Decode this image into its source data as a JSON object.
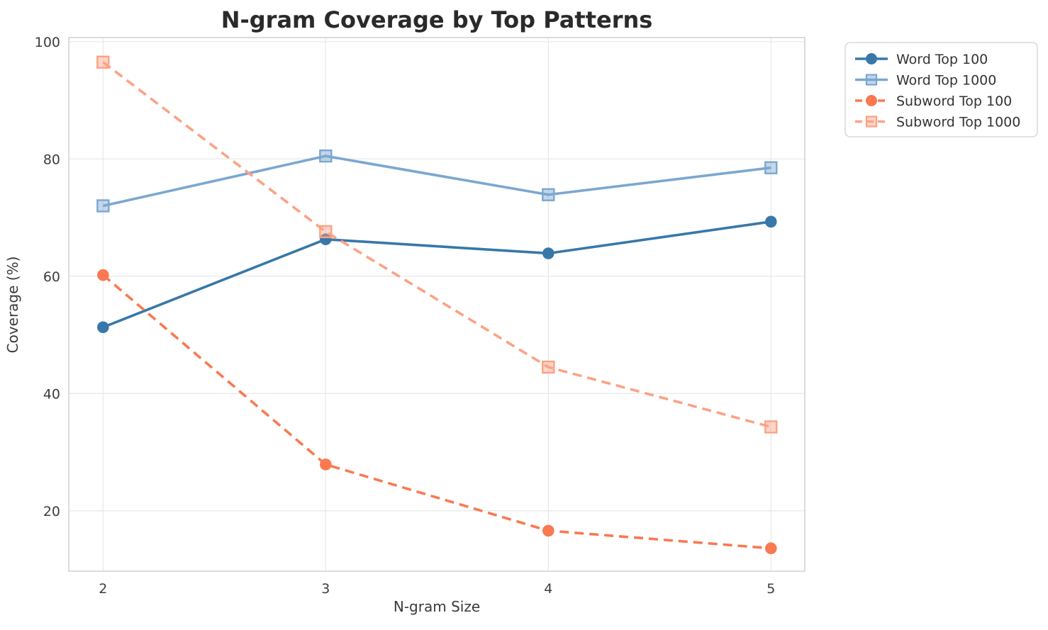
{
  "title": "N-gram Coverage by Top Patterns",
  "axes": {
    "xlabel": "N-gram Size",
    "ylabel": "Coverage (%)",
    "x_tick_values": [
      2,
      3,
      4,
      5
    ],
    "x_tick_labels": [
      "2",
      "3",
      "4",
      "5"
    ],
    "y_tick_values": [
      20,
      40,
      60,
      80,
      100
    ],
    "y_tick_labels": [
      "20",
      "40",
      "60",
      "80",
      "100"
    ]
  },
  "colors": {
    "word_top_100": "#3778a9",
    "word_top_1000": "#7ba7d1",
    "subword_top_100": "#fa7950",
    "subword_top_1000": "#fca284",
    "grid": "#e8e8e8",
    "frame": "#cccccc",
    "title_text": "#2a2a2a",
    "legend_border": "#d8d8d8"
  },
  "chart_data": {
    "type": "line",
    "title": "N-gram Coverage by Top Patterns",
    "xlabel": "N-gram Size",
    "ylabel": "Coverage (%)",
    "x": [
      2,
      3,
      4,
      5
    ],
    "xlim": [
      1.846,
      5.152
    ],
    "ylim": [
      9.7,
      100.7
    ],
    "grid": true,
    "legend_position": "outside-top-right",
    "series": [
      {
        "name": "Word Top 100",
        "values": [
          51.3,
          66.3,
          63.9,
          69.3
        ],
        "color": "#3778a9",
        "style": "solid",
        "marker": "circle"
      },
      {
        "name": "Word Top 1000",
        "values": [
          72.0,
          80.5,
          73.9,
          78.5
        ],
        "color": "#7ba7d1",
        "style": "solid",
        "marker": "square"
      },
      {
        "name": "Subword Top 100",
        "values": [
          60.2,
          27.9,
          16.6,
          13.6
        ],
        "color": "#fa7950",
        "style": "dashed",
        "marker": "circle"
      },
      {
        "name": "Subword Top 1000",
        "values": [
          96.5,
          67.6,
          44.5,
          34.3
        ],
        "color": "#fca284",
        "style": "dashed",
        "marker": "square"
      }
    ]
  }
}
